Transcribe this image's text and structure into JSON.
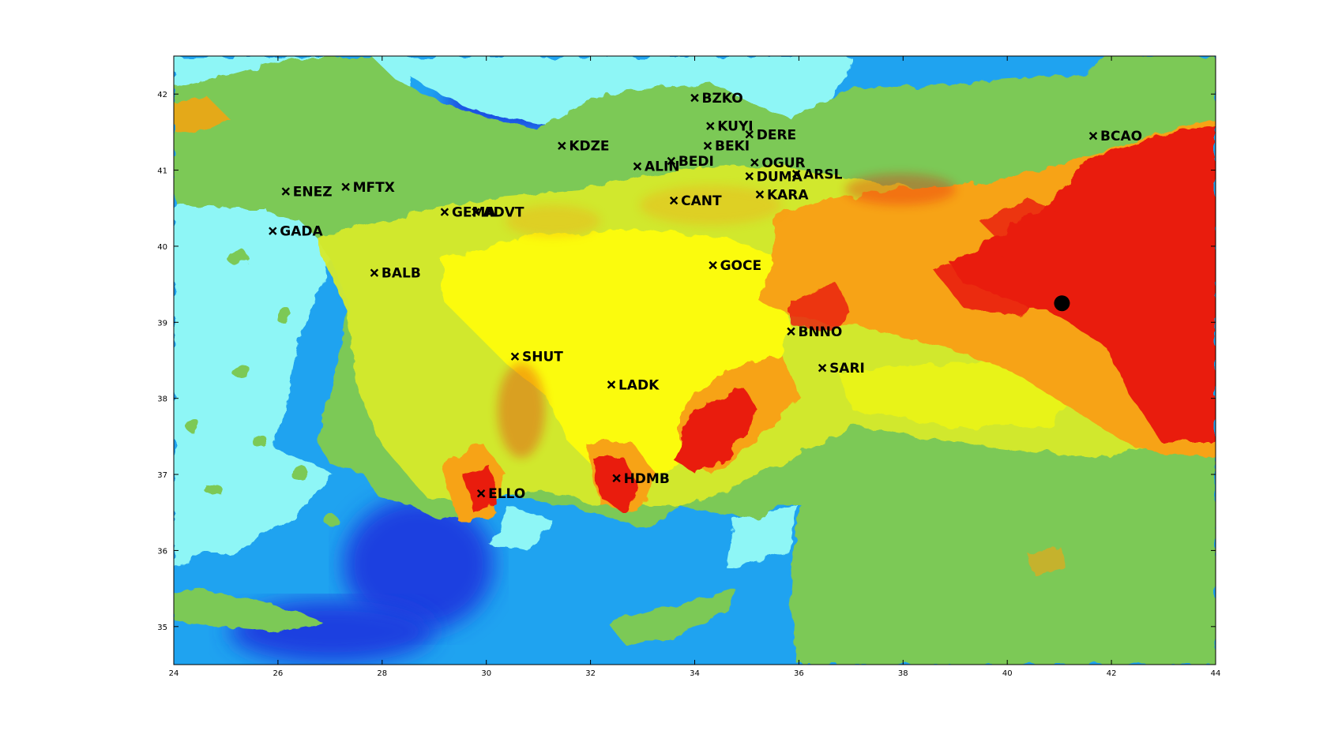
{
  "map": {
    "x_axis": {
      "min": 24,
      "max": 44,
      "ticks": [
        "24",
        "26",
        "28",
        "30",
        "32",
        "34",
        "36",
        "38",
        "40",
        "42",
        "44"
      ]
    },
    "y_axis": {
      "min": 34.5,
      "max": 42.5,
      "ticks": [
        "35",
        "36",
        "37",
        "38",
        "39",
        "40",
        "41",
        "42"
      ]
    },
    "colors": {
      "deep_sea": "#1a3fe0",
      "sea": "#1fa3f0",
      "shallow_sea": "#8ef6f6",
      "lowland": "#7cc957",
      "upland": "#d6ea2a",
      "plateau": "#fbfb0a",
      "highland": "#f7a313",
      "mountain": "#e91c0a",
      "frame": "#000000"
    },
    "event": {
      "lon": 41.05,
      "lat": 39.25,
      "symbol": "filled-circle"
    },
    "stations": [
      {
        "code": "BZKO",
        "lon": 34.0,
        "lat": 41.95
      },
      {
        "code": "KUYI",
        "lon": 34.3,
        "lat": 41.58
      },
      {
        "code": "DERE",
        "lon": 35.05,
        "lat": 41.47
      },
      {
        "code": "BEKI",
        "lon": 34.25,
        "lat": 41.32
      },
      {
        "code": "BCAO",
        "lon": 41.65,
        "lat": 41.45
      },
      {
        "code": "KDZE",
        "lon": 31.45,
        "lat": 41.32
      },
      {
        "code": "BEDI",
        "lon": 33.55,
        "lat": 41.12
      },
      {
        "code": "ALIN",
        "lon": 32.9,
        "lat": 41.05
      },
      {
        "code": "OGUR",
        "lon": 35.15,
        "lat": 41.1
      },
      {
        "code": "ARSL",
        "lon": 35.95,
        "lat": 40.95
      },
      {
        "code": "DUMA",
        "lon": 35.05,
        "lat": 40.92
      },
      {
        "code": "KARA",
        "lon": 35.25,
        "lat": 40.68
      },
      {
        "code": "CANT",
        "lon": 33.6,
        "lat": 40.6
      },
      {
        "code": "ENEZ",
        "lon": 26.15,
        "lat": 40.72
      },
      {
        "code": "MFTX",
        "lon": 27.3,
        "lat": 40.78
      },
      {
        "code": "GEMA",
        "lon": 29.2,
        "lat": 40.45
      },
      {
        "code": "ADVT",
        "lon": 29.8,
        "lat": 40.45
      },
      {
        "code": "GADA",
        "lon": 25.9,
        "lat": 40.2
      },
      {
        "code": "GOCE",
        "lon": 34.35,
        "lat": 39.75
      },
      {
        "code": "BALB",
        "lon": 27.85,
        "lat": 39.65
      },
      {
        "code": "BNNO",
        "lon": 35.85,
        "lat": 38.88
      },
      {
        "code": "SHUT",
        "lon": 30.55,
        "lat": 38.55
      },
      {
        "code": "SARI",
        "lon": 36.45,
        "lat": 38.4
      },
      {
        "code": "LADK",
        "lon": 32.4,
        "lat": 38.18
      },
      {
        "code": "HDMB",
        "lon": 32.5,
        "lat": 36.95
      },
      {
        "code": "ELLO",
        "lon": 29.9,
        "lat": 36.75
      }
    ]
  }
}
